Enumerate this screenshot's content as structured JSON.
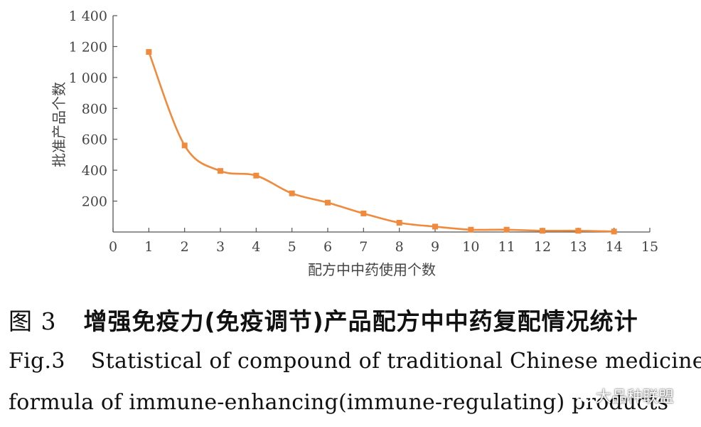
{
  "chart_data": {
    "type": "line",
    "title": "",
    "xlabel": "配方中中药使用个数",
    "ylabel": "批准产品个数",
    "xlim": [
      0,
      15
    ],
    "ylim": [
      0,
      1400
    ],
    "x_ticks": [
      0,
      1,
      2,
      3,
      4,
      5,
      6,
      7,
      8,
      9,
      10,
      11,
      12,
      13,
      14,
      15
    ],
    "y_ticks": [
      200,
      400,
      600,
      800,
      1000,
      1200,
      1400
    ],
    "y_tick_labels": [
      "200",
      "400",
      "600",
      "800",
      "1 000",
      "1 200",
      "1 400"
    ],
    "x": [
      1,
      2,
      3,
      4,
      5,
      6,
      7,
      8,
      9,
      10,
      11,
      12,
      13,
      14
    ],
    "values": [
      1165,
      560,
      395,
      365,
      250,
      190,
      120,
      60,
      35,
      15,
      15,
      8,
      8,
      3
    ],
    "line_color": "#F08A3C",
    "grid": false,
    "legend": "none"
  },
  "caption": {
    "cn_fig": "图 3",
    "cn_text": "增强免疫力(免疫调节)产品配方中中药复配情况统计",
    "en_fig": "Fig.3",
    "en_line1": "Statistical of compound of traditional Chinese medicine in",
    "en_line2": "formula of immune-enhancing(immune-regulating) products"
  },
  "watermark": {
    "text": "大品种联盟",
    "icon": "wechat-icon"
  }
}
